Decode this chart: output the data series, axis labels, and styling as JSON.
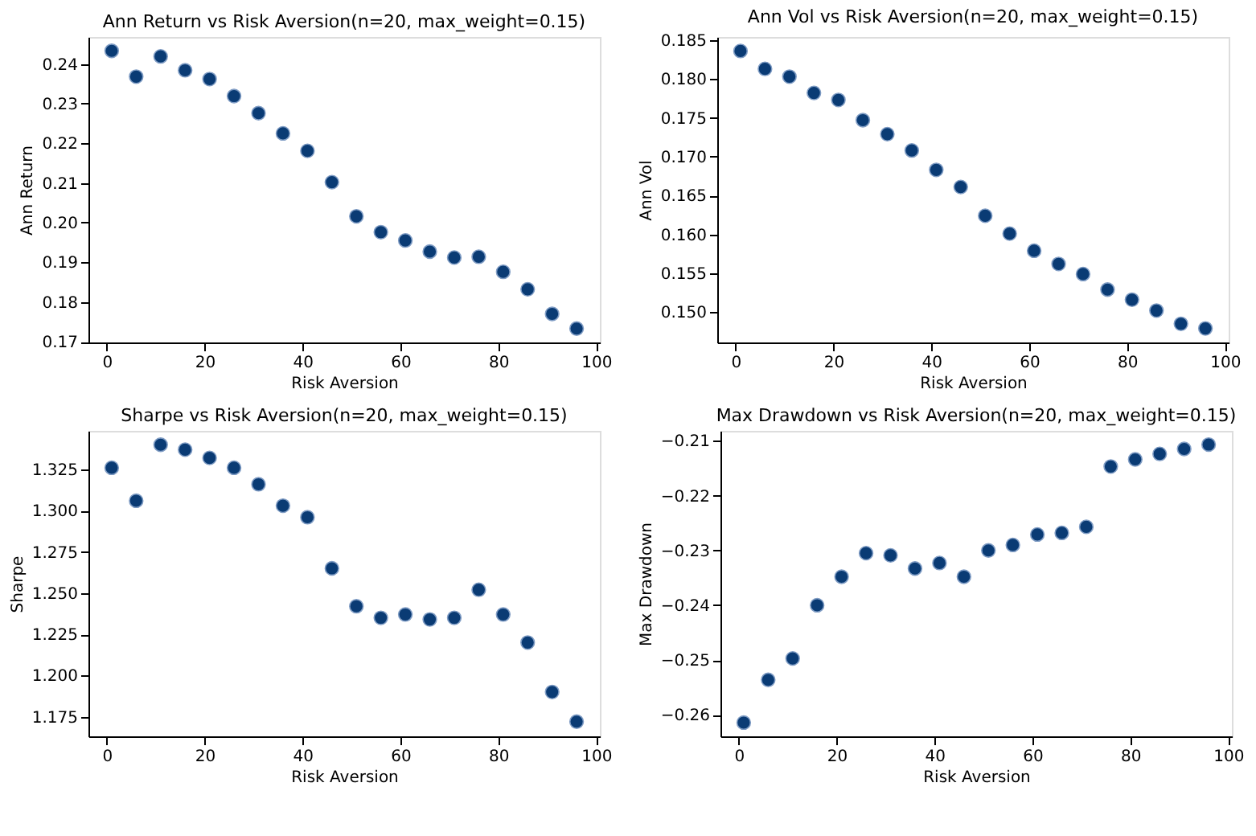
{
  "chart_data": [
    {
      "type": "scatter",
      "title": "Ann Return vs Risk Aversion(n=20, max_weight=0.15)",
      "xlabel": "Risk Aversion",
      "ylabel": "Ann Return",
      "marker": "circle",
      "grid": false,
      "x": [
        1,
        6,
        11,
        16,
        21,
        26,
        31,
        36,
        41,
        46,
        51,
        56,
        61,
        66,
        71,
        76,
        81,
        86,
        91,
        96
      ],
      "series": [
        {
          "color": "#0a3b74",
          "values": [
            0.2433,
            0.2368,
            0.2419,
            0.2384,
            0.2362,
            0.2319,
            0.2276,
            0.2225,
            0.2181,
            0.2102,
            0.2016,
            0.1976,
            0.1955,
            0.1927,
            0.1912,
            0.1914,
            0.1876,
            0.1832,
            0.177,
            0.1733
          ]
        }
      ],
      "xlim": [
        -3.75,
        100.75
      ],
      "xticks": [
        0,
        20,
        40,
        60,
        80,
        100
      ],
      "ylim": [
        0.1698,
        0.2468
      ],
      "yticks": [
        0.17,
        0.18,
        0.19,
        {
          "value": 0.2,
          "label": "0.20"
        },
        0.21,
        0.22,
        0.23,
        0.24
      ]
    },
    {
      "type": "scatter",
      "title": "Ann Vol vs Risk Aversion(n=20, max_weight=0.15)",
      "xlabel": "Risk Aversion",
      "ylabel": "Ann Vol",
      "marker": "circle",
      "grid": false,
      "x": [
        1,
        6,
        11,
        16,
        21,
        26,
        31,
        36,
        41,
        46,
        51,
        56,
        61,
        66,
        71,
        76,
        81,
        86,
        91,
        96
      ],
      "series": [
        {
          "color": "#0a3b74",
          "values": [
            0.1836,
            0.1813,
            0.1803,
            0.1782,
            0.1773,
            0.1747,
            0.1729,
            0.1708,
            0.1683,
            0.1661,
            0.1624,
            0.1601,
            0.1579,
            0.1562,
            0.1549,
            0.1529,
            0.1516,
            0.1502,
            0.1485,
            0.1479
          ]
        }
      ],
      "xlim": [
        -3.75,
        100.75
      ],
      "xticks": [
        0,
        20,
        40,
        60,
        80,
        100
      ],
      "ylim": [
        0.1461,
        0.1854
      ],
      "yticks": [
        {
          "value": 0.15,
          "label": "0.150"
        },
        0.155,
        {
          "value": 0.16,
          "label": "0.160"
        },
        0.165,
        {
          "value": 0.17,
          "label": "0.170"
        },
        0.175,
        {
          "value": 0.18,
          "label": "0.180"
        },
        0.185
      ]
    },
    {
      "type": "scatter",
      "title": "Sharpe vs Risk Aversion(n=20, max_weight=0.15)",
      "xlabel": "Risk Aversion",
      "ylabel": "Sharpe",
      "marker": "circle",
      "grid": false,
      "x": [
        1,
        6,
        11,
        16,
        21,
        26,
        31,
        36,
        41,
        46,
        51,
        56,
        61,
        66,
        71,
        76,
        81,
        86,
        91,
        96
      ],
      "series": [
        {
          "color": "#0a3b74",
          "values": [
            1.326,
            1.306,
            1.34,
            1.337,
            1.332,
            1.326,
            1.316,
            1.303,
            1.296,
            1.265,
            1.242,
            1.235,
            1.237,
            1.234,
            1.235,
            1.252,
            1.237,
            1.22,
            1.19,
            1.172
          ]
        }
      ],
      "xlim": [
        -3.75,
        100.75
      ],
      "xticks": [
        0,
        20,
        40,
        60,
        80,
        100
      ],
      "ylim": [
        1.1631,
        1.3484
      ],
      "yticks": [
        1.175,
        {
          "value": 1.2,
          "label": "1.200"
        },
        1.225,
        {
          "value": 1.25,
          "label": "1.250"
        },
        1.275,
        {
          "value": 1.3,
          "label": "1.300"
        },
        1.325
      ]
    },
    {
      "type": "scatter",
      "title": "Max Drawdown vs Risk Aversion(n=20, max_weight=0.15)",
      "xlabel": "Risk Aversion",
      "ylabel": "Max Drawdown",
      "marker": "circle",
      "grid": false,
      "x": [
        1,
        6,
        11,
        16,
        21,
        26,
        31,
        36,
        41,
        46,
        51,
        56,
        61,
        66,
        71,
        76,
        81,
        86,
        91,
        96
      ],
      "series": [
        {
          "color": "#0a3b74",
          "values": [
            -0.2614,
            -0.2536,
            -0.2497,
            -0.24,
            -0.2348,
            -0.2305,
            -0.2309,
            -0.2333,
            -0.2323,
            -0.2348,
            -0.23,
            -0.229,
            -0.2271,
            -0.2268,
            -0.2257,
            -0.2147,
            -0.2134,
            -0.2124,
            -0.2115,
            -0.2107
          ]
        }
      ],
      "xlim": [
        -3.75,
        100.75
      ],
      "xticks": [
        0,
        20,
        40,
        60,
        80,
        100
      ],
      "ylim": [
        -0.2639,
        -0.2082
      ],
      "yticks": [
        {
          "value": -0.26,
          "label": "−0.26"
        },
        {
          "value": -0.25,
          "label": "−0.25"
        },
        {
          "value": -0.24,
          "label": "−0.24"
        },
        {
          "value": -0.23,
          "label": "−0.23"
        },
        {
          "value": -0.22,
          "label": "−0.22"
        },
        {
          "value": -0.21,
          "label": "−0.21"
        }
      ]
    }
  ]
}
